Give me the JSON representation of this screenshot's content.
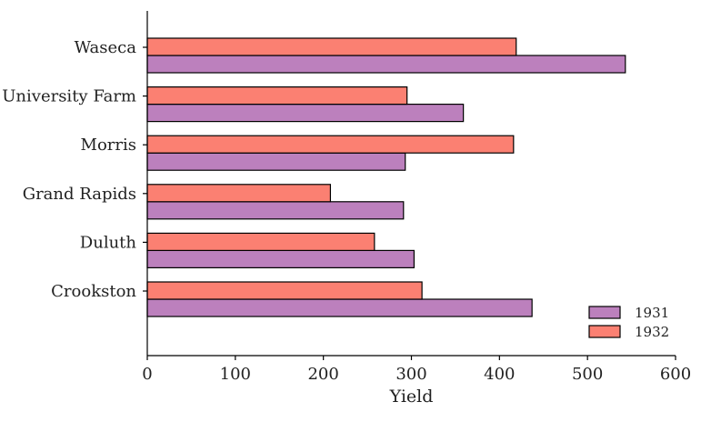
{
  "chart_data": {
    "type": "bar",
    "orientation": "horizontal",
    "title": "",
    "xlabel": "Yield",
    "ylabel": "",
    "xlim": [
      0,
      600
    ],
    "xticks": [
      0,
      100,
      200,
      300,
      400,
      500,
      600
    ],
    "grid": false,
    "legend_position": "bottom-right",
    "categories": [
      "Crookston",
      "Duluth",
      "Grand Rapids",
      "Morris",
      "University Farm",
      "Waseca"
    ],
    "series": [
      {
        "name": "1931",
        "color": "#bc80bd",
        "values": [
          437,
          303,
          291,
          293,
          359,
          543
        ]
      },
      {
        "name": "1932",
        "color": "#fb8072",
        "values": [
          312,
          258,
          208,
          416,
          295,
          419
        ]
      }
    ]
  }
}
